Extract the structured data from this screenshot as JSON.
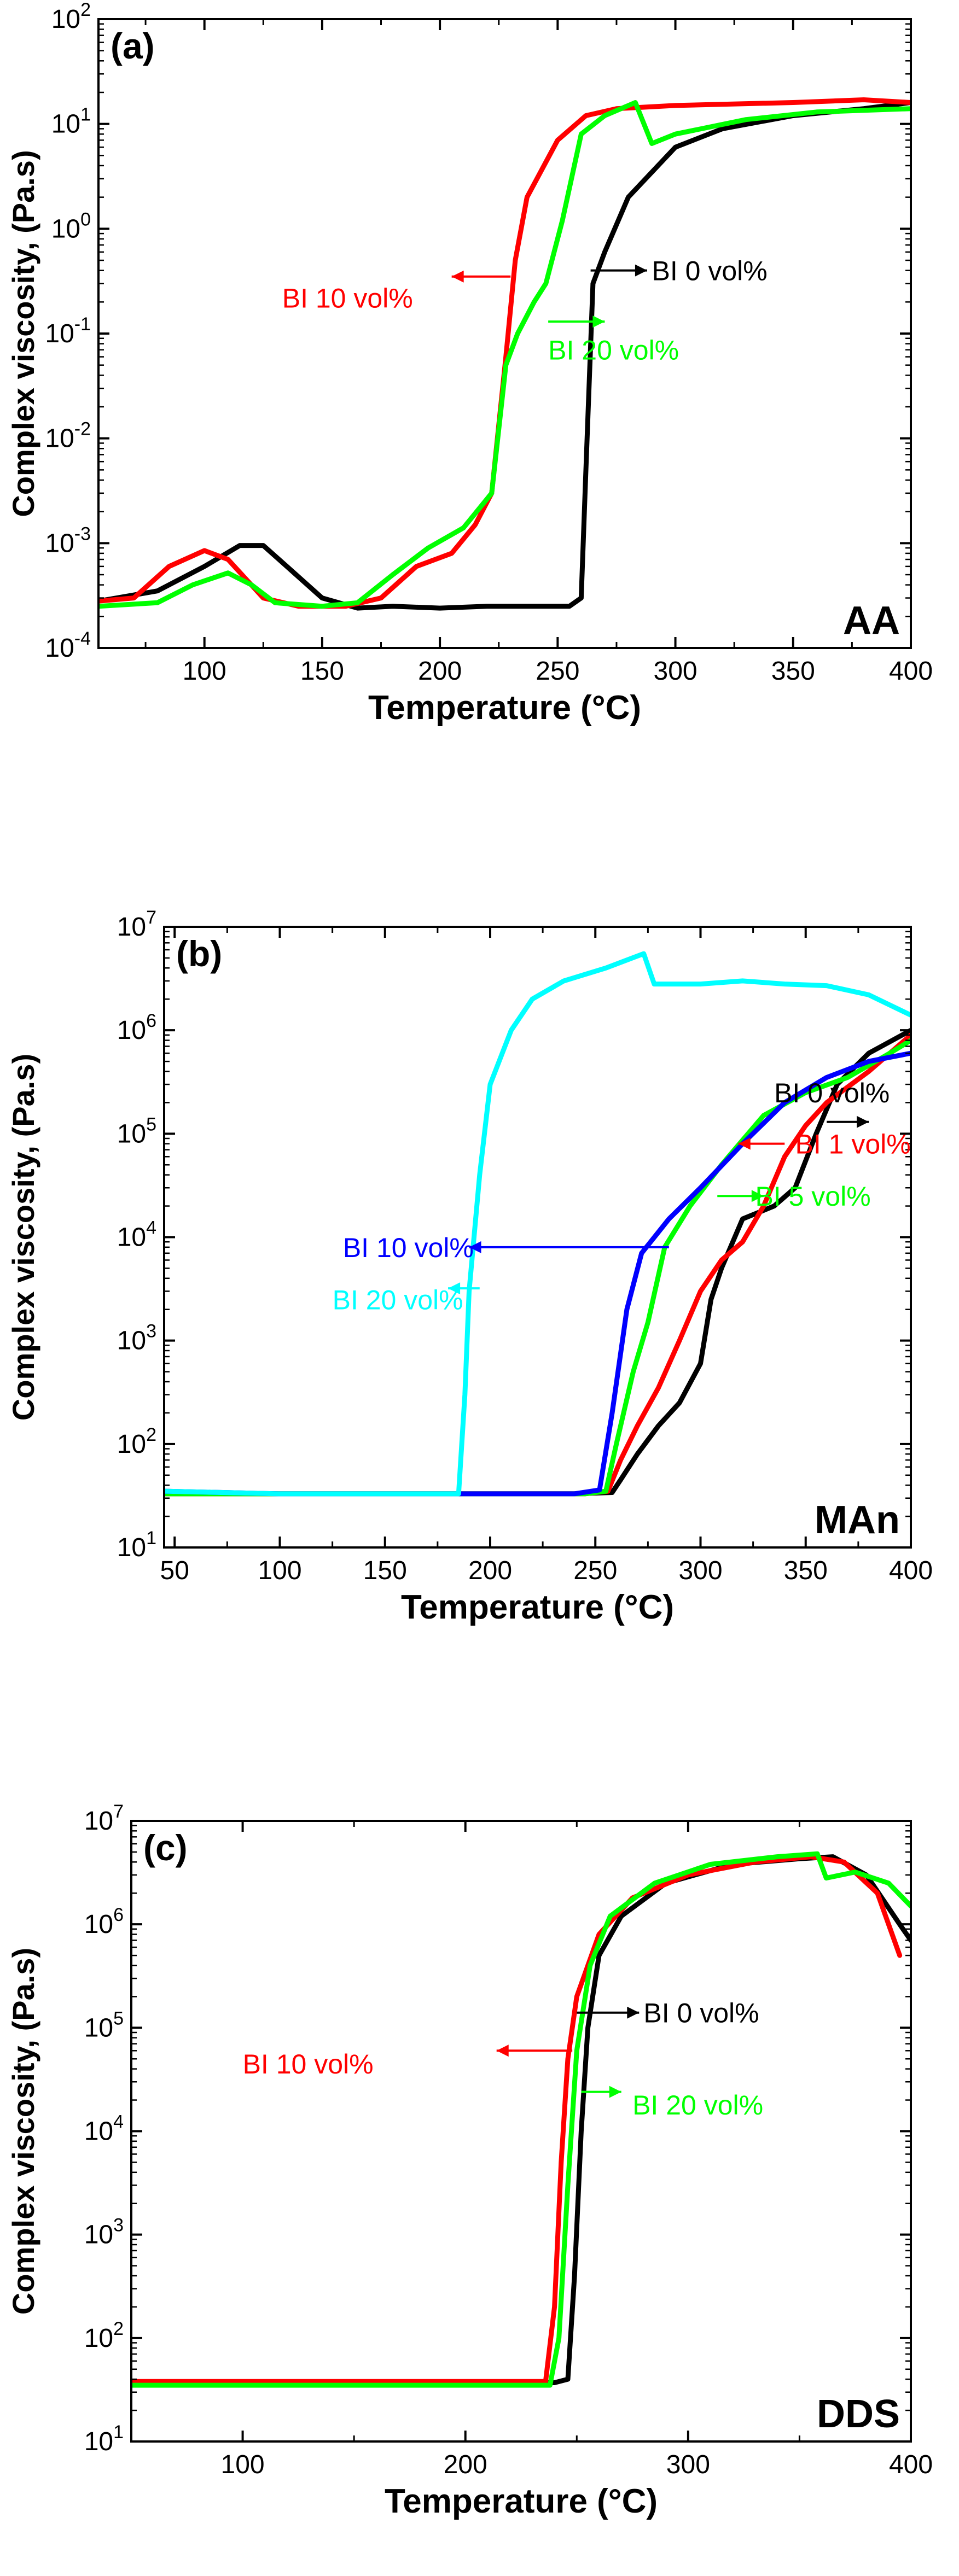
{
  "chart_data": [
    {
      "panel_label": "(a)",
      "corner_label": "AA",
      "type": "line",
      "xlabel": "Temperature (°C)",
      "ylabel": "Complex viscosity, (Pa.s)",
      "xlim": [
        55,
        400
      ],
      "xticks": [
        100,
        150,
        200,
        250,
        300,
        350,
        400
      ],
      "ylog": true,
      "ylim_exp": [
        -4,
        2
      ],
      "series": [
        {
          "name": "BI 0 vol%",
          "color": "#000000",
          "points": [
            [
              55,
              0.00028
            ],
            [
              80,
              0.00035
            ],
            [
              100,
              0.0006
            ],
            [
              115,
              0.00095
            ],
            [
              125,
              0.00095
            ],
            [
              135,
              0.0006
            ],
            [
              150,
              0.0003
            ],
            [
              165,
              0.00024
            ],
            [
              180,
              0.00025
            ],
            [
              200,
              0.00024
            ],
            [
              220,
              0.00025
            ],
            [
              240,
              0.00025
            ],
            [
              255,
              0.00025
            ],
            [
              260,
              0.0003
            ],
            [
              262,
              0.005
            ],
            [
              265,
              0.3
            ],
            [
              270,
              0.6
            ],
            [
              280,
              2
            ],
            [
              300,
              6
            ],
            [
              320,
              9
            ],
            [
              350,
              12
            ],
            [
              380,
              14
            ],
            [
              400,
              16
            ]
          ]
        },
        {
          "name": "BI 10 vol%",
          "color": "#ff0000",
          "points": [
            [
              55,
              0.00028
            ],
            [
              70,
              0.0003
            ],
            [
              85,
              0.0006
            ],
            [
              100,
              0.00085
            ],
            [
              110,
              0.0007
            ],
            [
              125,
              0.0003
            ],
            [
              140,
              0.00025
            ],
            [
              160,
              0.00025
            ],
            [
              175,
              0.0003
            ],
            [
              190,
              0.0006
            ],
            [
              205,
              0.0008
            ],
            [
              215,
              0.0015
            ],
            [
              222,
              0.003
            ],
            [
              228,
              0.06
            ],
            [
              232,
              0.5
            ],
            [
              237,
              2
            ],
            [
              250,
              7
            ],
            [
              262,
              12
            ],
            [
              275,
              14
            ],
            [
              300,
              15
            ],
            [
              350,
              16
            ],
            [
              380,
              17
            ],
            [
              400,
              16
            ]
          ]
        },
        {
          "name": "BI 20  vol%",
          "color": "#00ff00",
          "points": [
            [
              55,
              0.00025
            ],
            [
              80,
              0.00027
            ],
            [
              95,
              0.0004
            ],
            [
              110,
              0.00052
            ],
            [
              120,
              0.0004
            ],
            [
              130,
              0.00027
            ],
            [
              150,
              0.00025
            ],
            [
              165,
              0.00027
            ],
            [
              180,
              0.0005
            ],
            [
              195,
              0.0009
            ],
            [
              210,
              0.0014
            ],
            [
              222,
              0.003
            ],
            [
              228,
              0.05
            ],
            [
              233,
              0.1
            ],
            [
              240,
              0.2
            ],
            [
              245,
              0.3
            ],
            [
              252,
              1.2
            ],
            [
              260,
              8
            ],
            [
              270,
              12
            ],
            [
              283,
              16
            ],
            [
              290,
              6.5
            ],
            [
              300,
              8
            ],
            [
              330,
              11
            ],
            [
              360,
              13
            ],
            [
              400,
              14
            ]
          ]
        }
      ],
      "annotations": [
        {
          "text": "BI 10 vol%",
          "color": "#ff0000",
          "tx": 133,
          "ty": 0.22,
          "ax0": 230,
          "ay0": 0.35,
          "ax1": 205,
          "ay1": 0.35
        },
        {
          "text": "BI 0 vol%",
          "color": "#000000",
          "tx": 290,
          "ty": 0.4,
          "ax0": 264,
          "ay0": 0.4,
          "ax1": 288,
          "ay1": 0.4
        },
        {
          "text": "BI 20  vol%",
          "color": "#00ff00",
          "tx": 246,
          "ty": 0.07,
          "ax0": 246,
          "ay0": 0.13,
          "ax1": 270,
          "ay1": 0.13
        }
      ]
    },
    {
      "panel_label": "(b)",
      "corner_label": "MAn",
      "type": "line",
      "xlabel": "Temperature (°C)",
      "ylabel": "Complex viscosity, (Pa.s)",
      "xlim": [
        45,
        400
      ],
      "xticks": [
        50,
        100,
        150,
        200,
        250,
        300,
        350,
        400
      ],
      "ylog": true,
      "ylim_exp": [
        1,
        7
      ],
      "series": [
        {
          "name": "BI 0 vol%",
          "color": "#000000",
          "points": [
            [
              45,
              33
            ],
            [
              100,
              33
            ],
            [
              150,
              33
            ],
            [
              200,
              33
            ],
            [
              240,
              33
            ],
            [
              258,
              34
            ],
            [
              262,
              45
            ],
            [
              270,
              80
            ],
            [
              280,
              150
            ],
            [
              290,
              250
            ],
            [
              300,
              600
            ],
            [
              305,
              2500
            ],
            [
              310,
              5000
            ],
            [
              320,
              15000
            ],
            [
              335,
              20000
            ],
            [
              345,
              30000
            ],
            [
              355,
              100000
            ],
            [
              365,
              300000
            ],
            [
              380,
              600000
            ],
            [
              400,
              1000000
            ]
          ]
        },
        {
          "name": "BI 1 vol%",
          "color": "#ff0000",
          "points": [
            [
              45,
              33
            ],
            [
              100,
              33
            ],
            [
              200,
              33
            ],
            [
              245,
              33
            ],
            [
              256,
              35
            ],
            [
              262,
              70
            ],
            [
              270,
              150
            ],
            [
              280,
              350
            ],
            [
              290,
              1000
            ],
            [
              300,
              3000
            ],
            [
              310,
              6000
            ],
            [
              320,
              9000
            ],
            [
              330,
              20000
            ],
            [
              340,
              60000
            ],
            [
              350,
              120000
            ],
            [
              360,
              200000
            ],
            [
              380,
              400000
            ],
            [
              400,
              900000
            ]
          ]
        },
        {
          "name": "BI 5 vol%",
          "color": "#00ff00",
          "points": [
            [
              45,
              33
            ],
            [
              100,
              33
            ],
            [
              200,
              33
            ],
            [
              245,
              33
            ],
            [
              255,
              35
            ],
            [
              260,
              100
            ],
            [
              268,
              500
            ],
            [
              275,
              1500
            ],
            [
              283,
              8000
            ],
            [
              295,
              20000
            ],
            [
              310,
              50000
            ],
            [
              330,
              150000
            ],
            [
              350,
              250000
            ],
            [
              370,
              350000
            ],
            [
              390,
              600000
            ],
            [
              400,
              800000
            ]
          ]
        },
        {
          "name": "BI 10 vol%",
          "color": "#0000ff",
          "points": [
            [
              45,
              35
            ],
            [
              100,
              33
            ],
            [
              200,
              33
            ],
            [
              240,
              33
            ],
            [
              252,
              36
            ],
            [
              258,
              200
            ],
            [
              265,
              2000
            ],
            [
              272,
              7000
            ],
            [
              285,
              15000
            ],
            [
              300,
              30000
            ],
            [
              320,
              80000
            ],
            [
              340,
              200000
            ],
            [
              360,
              350000
            ],
            [
              380,
              500000
            ],
            [
              400,
              600000
            ]
          ]
        },
        {
          "name": "BI 20 vol%",
          "color": "#00ffff",
          "points": [
            [
              45,
              35
            ],
            [
              100,
              33
            ],
            [
              150,
              33
            ],
            [
              185,
              33
            ],
            [
              188,
              300
            ],
            [
              190,
              3000
            ],
            [
              195,
              40000
            ],
            [
              200,
              300000
            ],
            [
              210,
              1000000
            ],
            [
              220,
              2000000
            ],
            [
              235,
              3000000
            ],
            [
              255,
              4000000
            ],
            [
              273,
              5500000
            ],
            [
              278,
              2800000
            ],
            [
              300,
              2800000
            ],
            [
              320,
              3000000
            ],
            [
              340,
              2800000
            ],
            [
              360,
              2700000
            ],
            [
              380,
              2200000
            ],
            [
              400,
              1400000
            ]
          ]
        }
      ],
      "annotations": [
        {
          "text": "BI 0 vol%",
          "color": "#000000",
          "tx": 335,
          "ty": 250000,
          "ax0": 360,
          "ay0": 130000,
          "ax1": 380,
          "ay1": 130000
        },
        {
          "text": "BI 1 vol%",
          "color": "#ff0000",
          "tx": 345,
          "ty": 80000,
          "ax0": 340,
          "ay0": 80000,
          "ax1": 318,
          "ay1": 80000
        },
        {
          "text": "BI 5 vol%",
          "color": "#00ff00",
          "tx": 326,
          "ty": 25000,
          "ax0": 308,
          "ay0": 25000,
          "ax1": 330,
          "ay1": 25000
        },
        {
          "text": "BI 10 vol%",
          "color": "#0000ff",
          "tx": 130,
          "ty": 8000,
          "ax0": 285,
          "ay0": 8000,
          "ax1": 190,
          "ay1": 8000
        },
        {
          "text": "BI 20 vol%",
          "color": "#00ffff",
          "tx": 125,
          "ty": 2500,
          "ax0": 195,
          "ay0": 3200,
          "ax1": 180,
          "ay1": 3200
        }
      ]
    },
    {
      "panel_label": "(c)",
      "corner_label": "DDS",
      "type": "line",
      "xlabel": "Temperature (°C)",
      "ylabel": "Complex viscosity, (Pa.s)",
      "xlim": [
        50,
        400
      ],
      "xticks": [
        100,
        200,
        300,
        400
      ],
      "ylog": true,
      "ylim_exp": [
        1,
        7
      ],
      "series": [
        {
          "name": "BI 0 vol%",
          "color": "#000000",
          "points": [
            [
              50,
              37
            ],
            [
              100,
              37
            ],
            [
              150,
              37
            ],
            [
              200,
              37
            ],
            [
              240,
              37
            ],
            [
              246,
              40
            ],
            [
              249,
              400
            ],
            [
              252,
              10000
            ],
            [
              255,
              100000
            ],
            [
              260,
              500000
            ],
            [
              270,
              1200000
            ],
            [
              290,
              2500000
            ],
            [
              320,
              3800000
            ],
            [
              350,
              4300000
            ],
            [
              365,
              4500000
            ],
            [
              380,
              3000000
            ],
            [
              395,
              1000000
            ],
            [
              400,
              700000
            ]
          ]
        },
        {
          "name": "BI 10 vol%",
          "color": "#ff0000",
          "points": [
            [
              50,
              38
            ],
            [
              100,
              38
            ],
            [
              150,
              38
            ],
            [
              200,
              38
            ],
            [
              236,
              38
            ],
            [
              240,
              200
            ],
            [
              243,
              5000
            ],
            [
              246,
              50000
            ],
            [
              250,
              200000
            ],
            [
              260,
              800000
            ],
            [
              275,
              1800000
            ],
            [
              300,
              3000000
            ],
            [
              330,
              4000000
            ],
            [
              355,
              4500000
            ],
            [
              370,
              4000000
            ],
            [
              385,
              2000000
            ],
            [
              395,
              500000
            ]
          ]
        },
        {
          "name": "BI 20  vol%",
          "color": "#00ff00",
          "points": [
            [
              50,
              35
            ],
            [
              100,
              35
            ],
            [
              150,
              35
            ],
            [
              200,
              35
            ],
            [
              238,
              35
            ],
            [
              242,
              100
            ],
            [
              246,
              3000
            ],
            [
              250,
              60000
            ],
            [
              256,
              400000
            ],
            [
              265,
              1200000
            ],
            [
              285,
              2500000
            ],
            [
              310,
              3800000
            ],
            [
              340,
              4500000
            ],
            [
              358,
              4800000
            ],
            [
              362,
              2800000
            ],
            [
              375,
              3200000
            ],
            [
              390,
              2500000
            ],
            [
              400,
              1500000
            ]
          ]
        }
      ],
      "annotations": [
        {
          "text": "BI 10 vol%",
          "color": "#ff0000",
          "tx": 100,
          "ty": 45000,
          "ax0": 248,
          "ay0": 60000,
          "ax1": 214,
          "ay1": 60000
        },
        {
          "text": "BI 0 vol%",
          "color": "#000000",
          "tx": 280,
          "ty": 140000,
          "ax0": 250,
          "ay0": 140000,
          "ax1": 278,
          "ay1": 140000
        },
        {
          "text": "BI 20  vol%",
          "color": "#00ff00",
          "tx": 275,
          "ty": 18000,
          "ax0": 252,
          "ay0": 24000,
          "ax1": 270,
          "ay1": 24000
        }
      ]
    }
  ]
}
